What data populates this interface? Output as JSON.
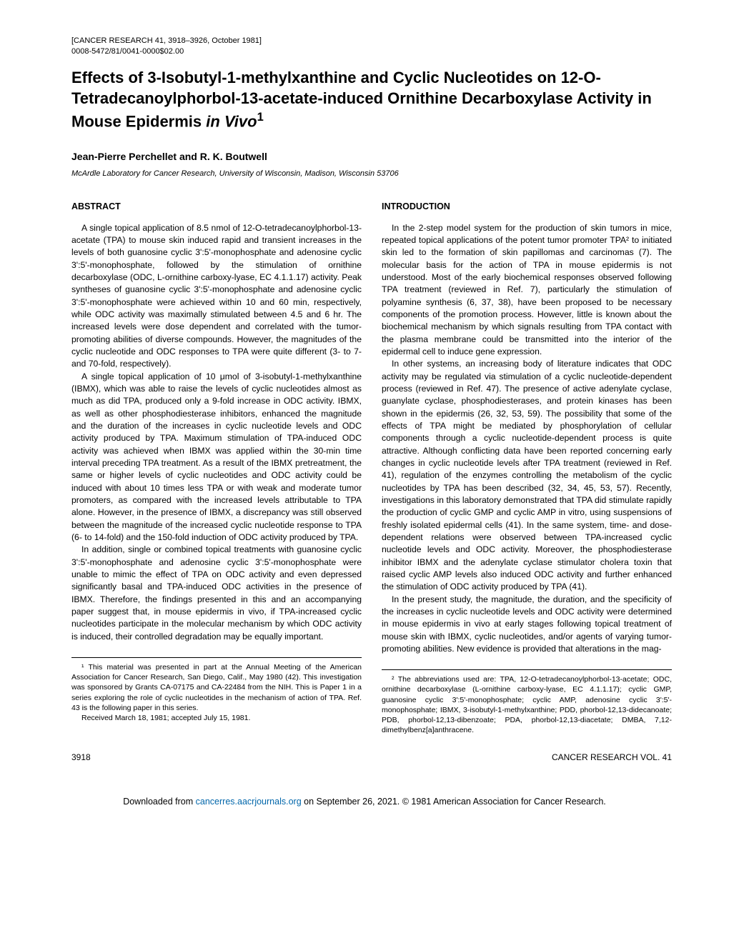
{
  "journal_header": {
    "line1": "[CANCER RESEARCH 41, 3918–3926, October 1981]",
    "line2": "0008-5472/81/0041-0000$02.00"
  },
  "title_parts": {
    "pre": "Effects of 3-Isobutyl-1-methylxanthine and Cyclic Nucleotides on 12-O-Tetradecanoylphorbol-13-acetate-induced Ornithine Decarboxylase Activity in Mouse Epidermis ",
    "italic": "in Vivo",
    "sup": "1"
  },
  "authors": "Jean-Pierre Perchellet and R. K. Boutwell",
  "affiliation": "McArdle Laboratory for Cancer Research, University of Wisconsin, Madison, Wisconsin 53706",
  "left_column": {
    "heading": "ABSTRACT",
    "paragraphs": [
      "A single topical application of 8.5 nmol of 12-O-tetradecanoylphorbol-13-acetate (TPA) to mouse skin induced rapid and transient increases in the levels of both guanosine cyclic 3':5'-monophosphate and adenosine cyclic 3':5'-monophosphate, followed by the stimulation of ornithine decarboxylase (ODC, L-ornithine carboxy-lyase, EC 4.1.1.17) activity. Peak syntheses of guanosine cyclic 3':5'-monophosphate and adenosine cyclic 3':5'-monophosphate were achieved within 10 and 60 min, respectively, while ODC activity was maximally stimulated between 4.5 and 6 hr. The increased levels were dose dependent and correlated with the tumor-promoting abilities of diverse compounds. However, the magnitudes of the cyclic nucleotide and ODC responses to TPA were quite different (3- to 7- and 70-fold, respectively).",
      "A single topical application of 10 μmol of 3-isobutyl-1-methylxanthine (IBMX), which was able to raise the levels of cyclic nucleotides almost as much as did TPA, produced only a 9-fold increase in ODC activity. IBMX, as well as other phosphodiesterase inhibitors, enhanced the magnitude and the duration of the increases in cyclic nucleotide levels and ODC activity produced by TPA. Maximum stimulation of TPA-induced ODC activity was achieved when IBMX was applied within the 30-min time interval preceding TPA treatment. As a result of the IBMX pretreatment, the same or higher levels of cyclic nucleotides and ODC activity could be induced with about 10 times less TPA or with weak and moderate tumor promoters, as compared with the increased levels attributable to TPA alone. However, in the presence of IBMX, a discrepancy was still observed between the magnitude of the increased cyclic nucleotide response to TPA (6- to 14-fold) and the 150-fold induction of ODC activity produced by TPA.",
      "In addition, single or combined topical treatments with guanosine cyclic 3':5'-monophosphate and adenosine cyclic 3':5'-monophosphate were unable to mimic the effect of TPA on ODC activity and even depressed significantly basal and TPA-induced ODC activities in the presence of IBMX. Therefore, the findings presented in this and an accompanying paper suggest that, in mouse epidermis in vivo, if TPA-increased cyclic nucleotides participate in the molecular mechanism by which ODC activity is induced, their controlled degradation may be equally important."
    ],
    "footnote": "¹ This material was presented in part at the Annual Meeting of the American Association for Cancer Research, San Diego, Calif., May 1980 (42). This investigation was sponsored by Grants CA-07175 and CA-22484 from the NIH. This is Paper 1 in a series exploring the role of cyclic nucleotides in the mechanism of action of TPA. Ref. 43 is the following paper in this series.",
    "received": "Received March 18, 1981; accepted July 15, 1981."
  },
  "right_column": {
    "heading": "INTRODUCTION",
    "paragraphs": [
      "In the 2-step model system for the production of skin tumors in mice, repeated topical applications of the potent tumor promoter TPA² to initiated skin led to the formation of skin papillomas and carcinomas (7). The molecular basis for the action of TPA in mouse epidermis is not understood. Most of the early biochemical responses observed following TPA treatment (reviewed in Ref. 7), particularly the stimulation of polyamine synthesis (6, 37, 38), have been proposed to be necessary components of the promotion process. However, little is known about the biochemical mechanism by which signals resulting from TPA contact with the plasma membrane could be transmitted into the interior of the epidermal cell to induce gene expression.",
      "In other systems, an increasing body of literature indicates that ODC activity may be regulated via stimulation of a cyclic nucleotide-dependent process (reviewed in Ref. 47). The presence of active adenylate cyclase, guanylate cyclase, phosphodiesterases, and protein kinases has been shown in the epidermis (26, 32, 53, 59). The possibility that some of the effects of TPA might be mediated by phosphorylation of cellular components through a cyclic nucleotide-dependent process is quite attractive. Although conflicting data have been reported concerning early changes in cyclic nucleotide levels after TPA treatment (reviewed in Ref. 41), regulation of the enzymes controlling the metabolism of the cyclic nucleotides by TPA has been described (32, 34, 45, 53, 57). Recently, investigations in this laboratory demonstrated that TPA did stimulate rapidly the production of cyclic GMP and cyclic AMP in vitro, using suspensions of freshly isolated epidermal cells (41). In the same system, time- and dose-dependent relations were observed between TPA-increased cyclic nucleotide levels and ODC activity. Moreover, the phosphodiesterase inhibitor IBMX and the adenylate cyclase stimulator cholera toxin that raised cyclic AMP levels also induced ODC activity and further enhanced the stimulation of ODC activity produced by TPA (41).",
      "In the present study, the magnitude, the duration, and the specificity of the increases in cyclic nucleotide levels and ODC activity were determined in mouse epidermis in vivo at early stages following topical treatment of mouse skin with IBMX, cyclic nucleotides, and/or agents of varying tumor-promoting abilities. New evidence is provided that alterations in the mag-"
    ],
    "footnote": "² The abbreviations used are: TPA, 12-O-tetradecanoylphorbol-13-acetate; ODC, ornithine decarboxylase (L-ornithine carboxy-lyase, EC 4.1.1.17); cyclic GMP, guanosine cyclic 3':5'-monophosphate; cyclic AMP, adenosine cyclic 3':5'-monophosphate; IBMX, 3-isobutyl-1-methylxanthine; PDD, phorbol-12,13-didecanoate; PDB, phorbol-12,13-dibenzoate; PDA, phorbol-12,13-diacetate; DMBA, 7,12-dimethylbenz[a]anthracene."
  },
  "footer": {
    "page_number": "3918",
    "journal_vol": "CANCER RESEARCH VOL. 41"
  },
  "download": {
    "prefix": "Downloaded from ",
    "link_text": "cancerres.aacrjournals.org",
    "suffix": " on September 26, 2021. © 1981 American Association for Cancer Research."
  }
}
